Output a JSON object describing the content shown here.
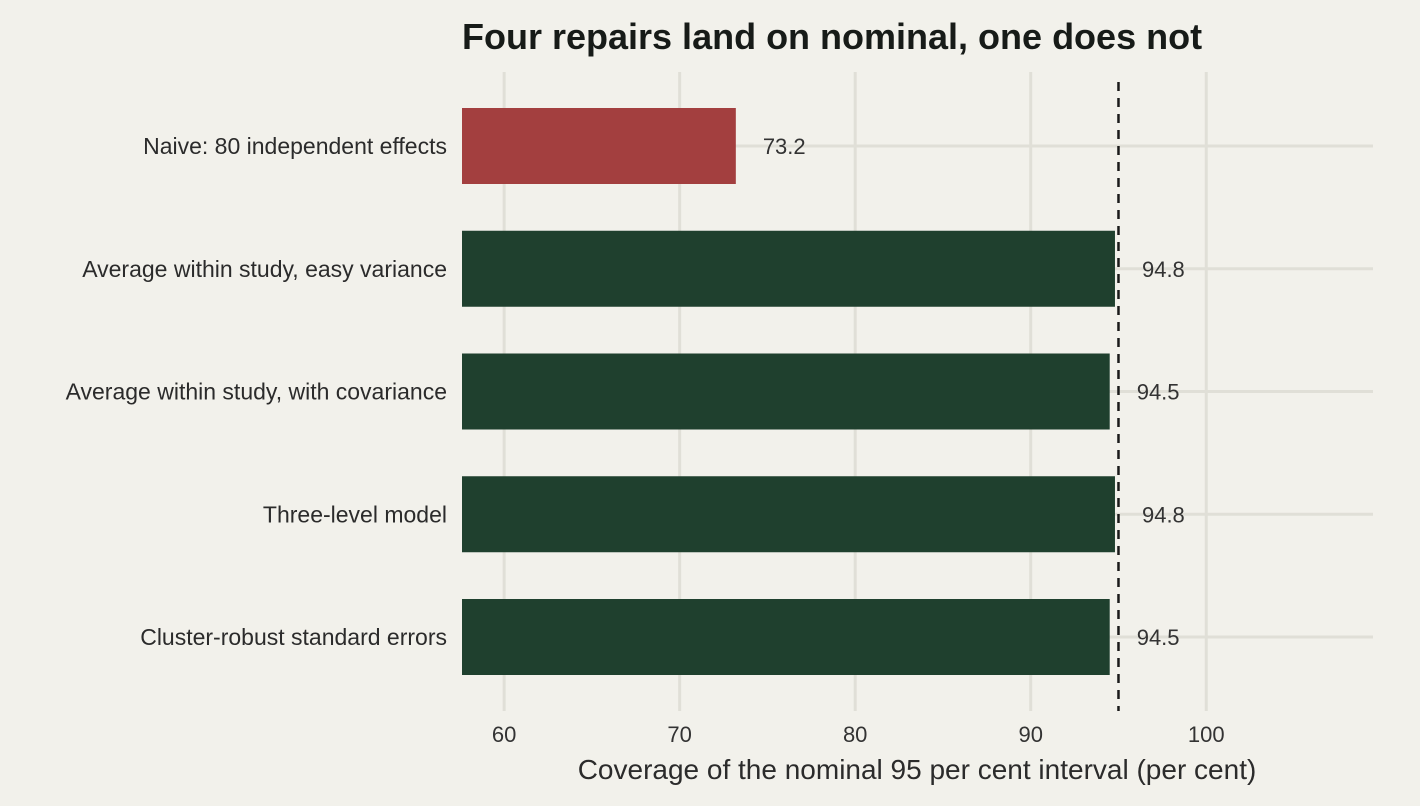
{
  "chart_data": {
    "type": "bar",
    "orientation": "horizontal",
    "title": "Four repairs land on nominal, one does not",
    "xlabel": "Coverage of the nominal 95 per cent interval (per cent)",
    "ylabel": "",
    "categories": [
      "Naive: 80 independent effects",
      "Average within study, easy variance",
      "Average within study, with covariance",
      "Three-level model",
      "Cluster-robust standard errors"
    ],
    "values": [
      73.2,
      94.8,
      94.5,
      94.8,
      94.5
    ],
    "data_labels": [
      "73.2",
      "94.8",
      "94.5",
      "94.8",
      "94.5"
    ],
    "xlim": [
      57.6,
      109.5
    ],
    "x_ticks": [
      60,
      70,
      80,
      90,
      100
    ],
    "x_tick_labels": [
      "60",
      "70",
      "80",
      "90",
      "100"
    ],
    "reference_line": 95,
    "grid": true,
    "legend": "none",
    "colors": {
      "highlight": "#a33f3f",
      "default": "#1f402e",
      "background": "#f2f1eb",
      "grid": "#e0dfd7",
      "reference_line": "#1a1a1a"
    }
  }
}
